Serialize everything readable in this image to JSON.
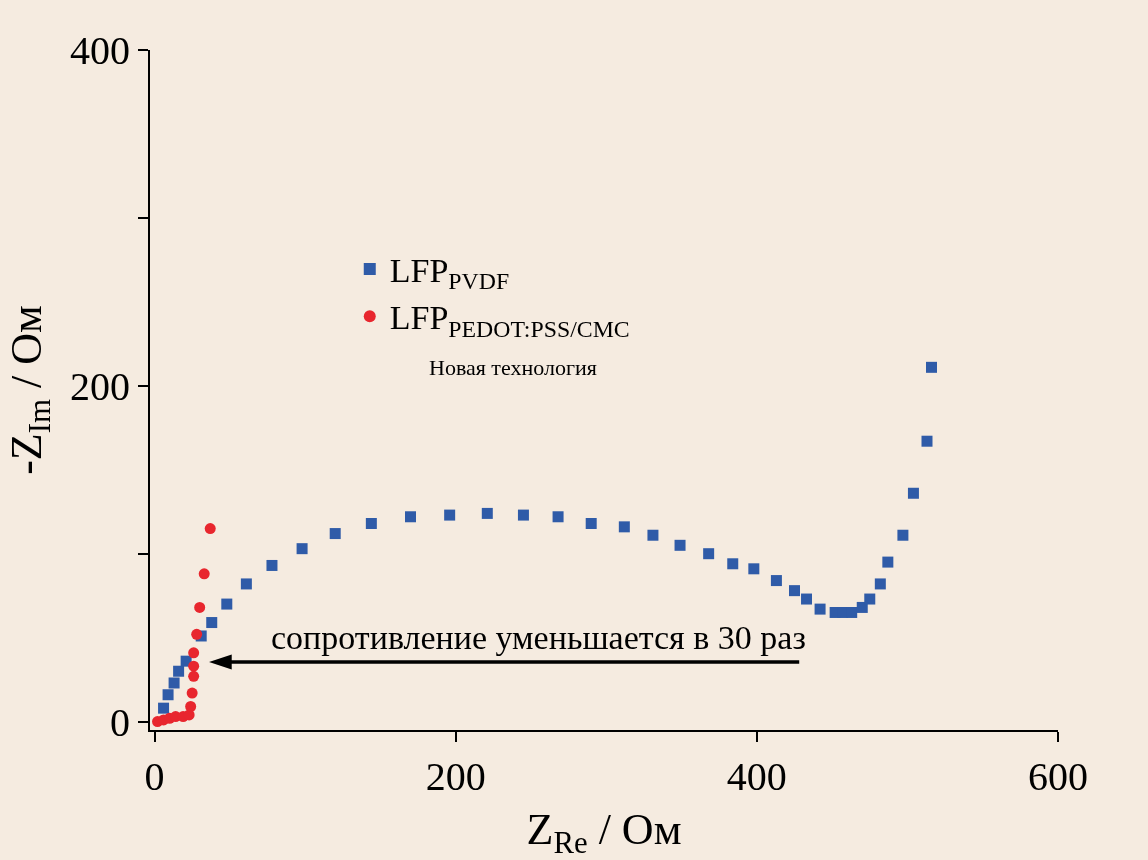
{
  "chart_data": {
    "type": "scatter",
    "xlabel": "Z$_{Re}$ / Ом",
    "ylabel": "-Z$_{Im}$ / Ом",
    "xlim": [
      -3,
      600
    ],
    "xticks": [
      0,
      200,
      400,
      600
    ],
    "ylim": [
      -5,
      400
    ],
    "yticks": [
      0,
      {
        "value": 100,
        "label": null
      },
      200,
      {
        "value": 300,
        "label": null
      },
      400
    ],
    "grid": false,
    "legend": "left",
    "series": [
      {
        "name": "LFP$_{PVDF}$",
        "color": "#2f5ba8",
        "marker": "square",
        "x": [
          6,
          9,
          13,
          16,
          21,
          25,
          31,
          38,
          48,
          61,
          78,
          98,
          120,
          144,
          170,
          196,
          221,
          245,
          268,
          290,
          312,
          331,
          349,
          368,
          384,
          398,
          413,
          425,
          433,
          442,
          452,
          457,
          463,
          470,
          475,
          482,
          487,
          497,
          504,
          513,
          516
        ],
        "values": [
          8,
          16,
          23,
          30,
          36,
          null,
          51,
          59,
          70,
          82,
          93,
          103,
          112,
          118,
          122,
          123,
          124,
          123,
          122,
          118,
          116,
          111,
          105,
          100,
          94,
          91,
          84,
          78,
          73,
          67,
          65,
          65,
          65,
          68,
          73,
          82,
          95,
          111,
          136,
          167,
          211
        ]
      },
      {
        "name": "LFP$_{PEDOT:PSS/CMC}$",
        "color": "#e8262e",
        "marker": "circle",
        "x": [
          2,
          6,
          10,
          14,
          19,
          23,
          24,
          25,
          26,
          26,
          26,
          28,
          30,
          33,
          37
        ],
        "values": [
          0,
          1,
          2,
          3,
          3,
          4,
          9,
          17,
          27,
          33,
          41,
          52,
          68,
          88,
          115
        ]
      }
    ],
    "annotations": [
      "Новая технология",
      "сопротивление уменьшается в 30 раз"
    ]
  }
}
